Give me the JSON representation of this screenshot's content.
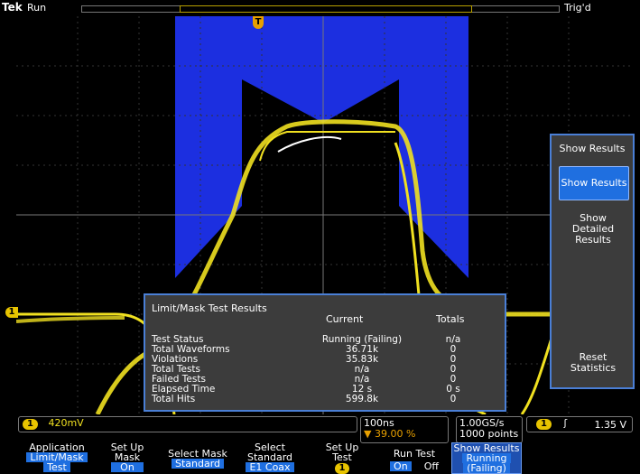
{
  "top": {
    "brand": "Tek",
    "state": "Run",
    "trigger_state": "Trig'd"
  },
  "trigger_marker": "T",
  "channel_marker": "1",
  "results": {
    "title": "Limit/Mask Test Results",
    "col_current": "Current",
    "col_totals": "Totals",
    "rows": [
      {
        "label": "Test Status",
        "current": "Running (Failing)",
        "total": "n/a"
      },
      {
        "label": "Total Waveforms",
        "current": "36.71k",
        "total": "0"
      },
      {
        "label": "Violations",
        "current": "35.83k",
        "total": "0"
      },
      {
        "label": "Total Tests",
        "current": "n/a",
        "total": "0"
      },
      {
        "label": "Failed Tests",
        "current": "n/a",
        "total": "0"
      },
      {
        "label": "Elapsed Time",
        "current": "12 s",
        "total": "0 s"
      },
      {
        "label": "Total Hits",
        "current": "599.8k",
        "total": "0"
      }
    ]
  },
  "side_menu": {
    "header": "Show Results",
    "show_results": "Show Results",
    "show_detailed_1": "Show",
    "show_detailed_2": "Detailed",
    "show_detailed_3": "Results",
    "reset_1": "Reset",
    "reset_2": "Statistics"
  },
  "status": {
    "ch_num": "1",
    "ch_scale": "420mV",
    "timebase": "100ns",
    "trig_pos": "39.00 %",
    "sample_rate": "1.00GS/s",
    "record_length": "1000 points",
    "trig_ch": "1",
    "trig_slope": "ʃ",
    "trig_level": "1.35 V"
  },
  "bottom_menu": {
    "app_1": "Application",
    "app_2": "Limit/Mask",
    "app_3": "Test",
    "setup_mask_1": "Set Up",
    "setup_mask_2": "Mask",
    "setup_mask_3": "On",
    "select_mask_1": "Select Mask",
    "select_mask_2": "Standard",
    "select_std_1": "Select",
    "select_std_2": "Standard",
    "select_std_3": "E1 Coax",
    "setup_test_1": "Set Up",
    "setup_test_2": "Test",
    "setup_test_3": "1",
    "run_test_1": "Run Test",
    "run_on": "On",
    "run_off": "Off",
    "show_res_1": "Show Results",
    "show_res_2": "Running",
    "show_res_3": "(Failing)"
  },
  "colors": {
    "mask": "#1c2fe0",
    "trace": "#f0e020",
    "accent": "#1f6fe0"
  }
}
